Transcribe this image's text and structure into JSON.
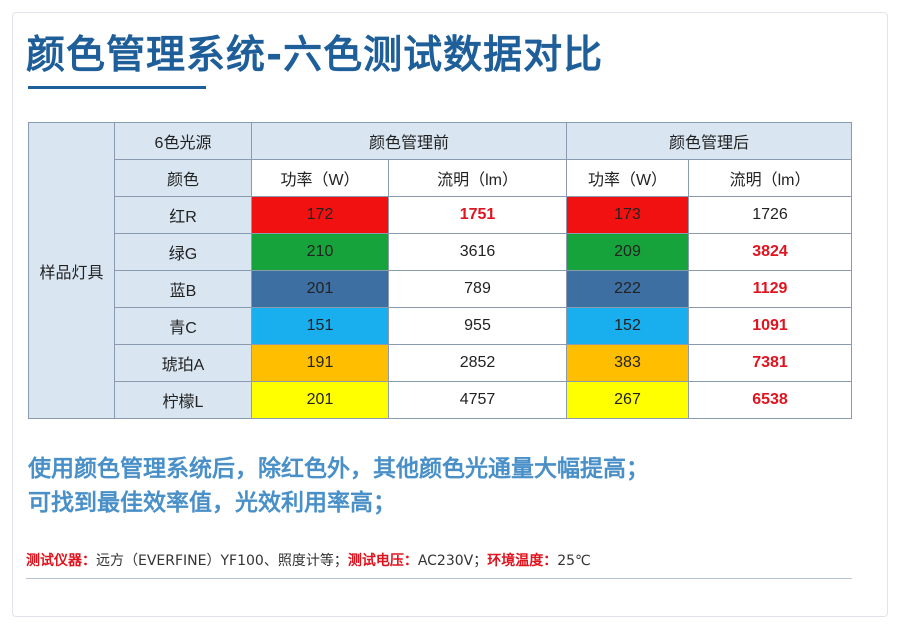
{
  "title": "颜色管理系统-六色测试数据对比",
  "table": {
    "row_header": "样品灯具",
    "col_source": "6色光源",
    "col_color": "颜色",
    "group_before": "颜色管理前",
    "group_after": "颜色管理后",
    "power_label": "功率（W）",
    "flux_label": "流明（lm）",
    "rows": [
      {
        "name": "红R",
        "swatch": "#f21111",
        "before_power": "172",
        "before_flux": "1751",
        "after_power": "173",
        "after_flux": "1726"
      },
      {
        "name": "绿G",
        "swatch": "#17a33b",
        "before_power": "210",
        "before_flux": "3616",
        "after_power": "209",
        "after_flux": "3824"
      },
      {
        "name": "蓝B",
        "swatch": "#3e6fa3",
        "before_power": "201",
        "before_flux": "789",
        "after_power": "222",
        "after_flux": "1129"
      },
      {
        "name": "青C",
        "swatch": "#19aeee",
        "before_power": "151",
        "before_flux": "955",
        "after_power": "152",
        "after_flux": "1091"
      },
      {
        "name": "琥珀A",
        "swatch": "#ffbf00",
        "before_power": "191",
        "before_flux": "2852",
        "after_power": "383",
        "after_flux": "7381"
      },
      {
        "name": "柠檬L",
        "swatch": "#ffff00",
        "before_power": "201",
        "before_flux": "4757",
        "after_power": "267",
        "after_flux": "6538"
      }
    ]
  },
  "summary": {
    "line1": "使用颜色管理系统后，除红色外，其他颜色光通量大幅提高；",
    "line2": "可找到最佳效率值，光效利用率高；"
  },
  "footer": {
    "instrument_key": "测试仪器：",
    "instrument_val": "远方（EVERFINE）YF100、照度计等；",
    "voltage_key": "测试电压：",
    "voltage_val": "AC230V；",
    "temp_key": "环境温度：",
    "temp_val": "25℃"
  },
  "colors": {
    "title": "#1f5f99",
    "highlight": "#e0141e",
    "header_bg": "#d9e6f2",
    "summary": "#4a90c8"
  }
}
